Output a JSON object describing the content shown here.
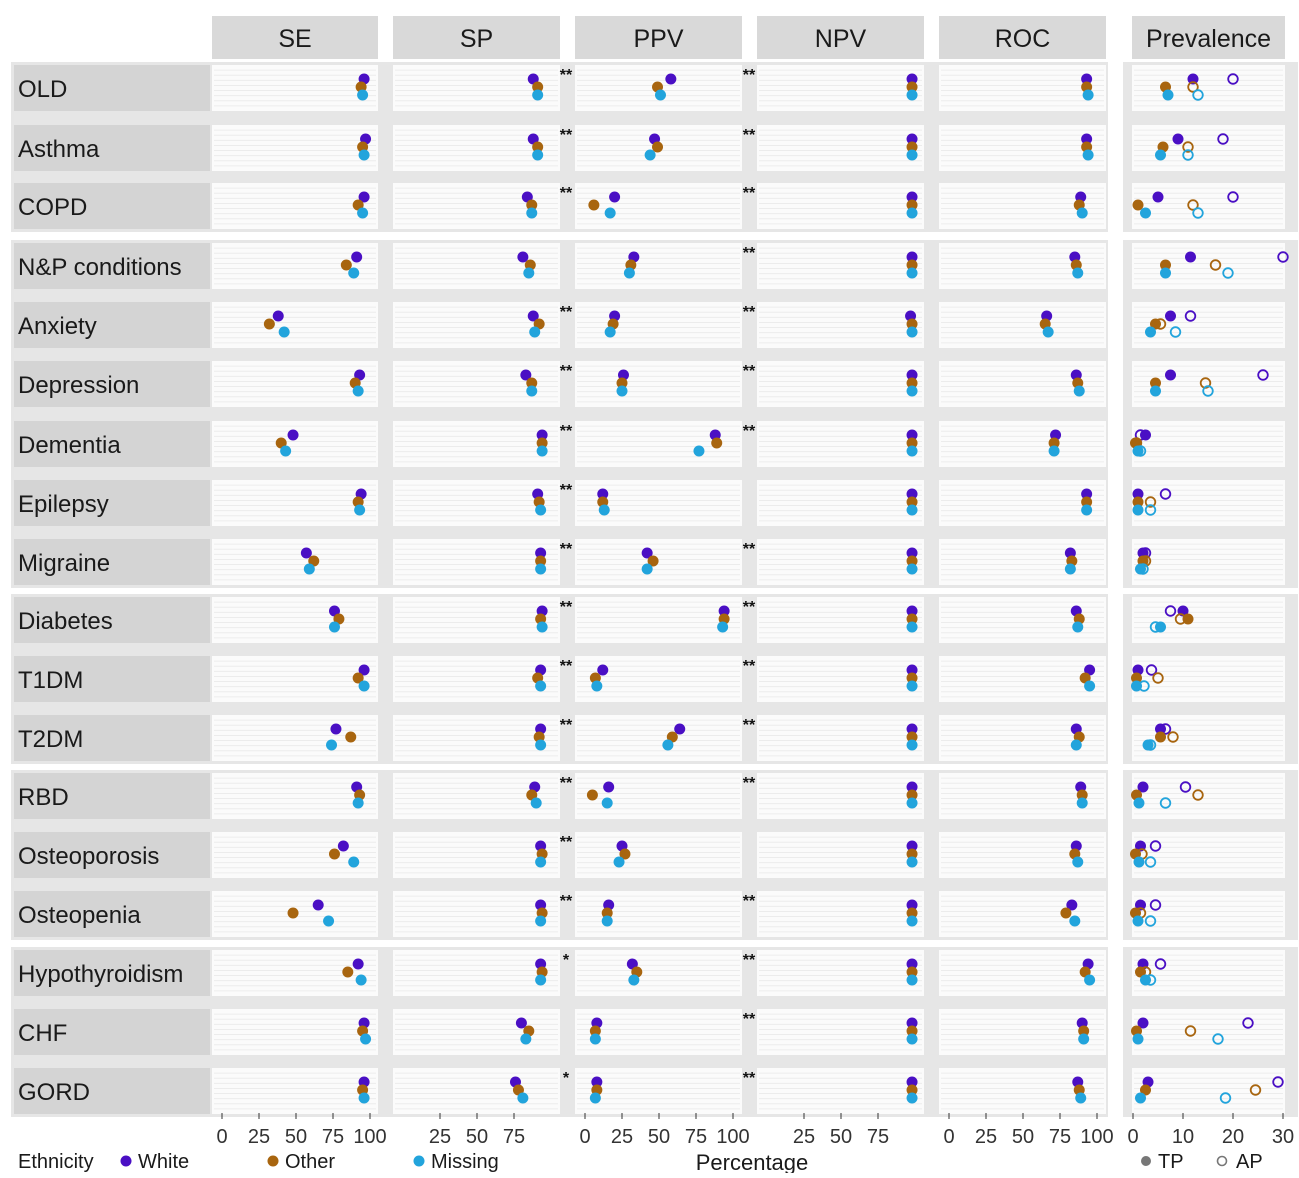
{
  "chart_data": {
    "type": "scatter",
    "xlabel": "Percentage",
    "metric_panels": [
      "SE",
      "SP",
      "PPV",
      "NPV",
      "ROC"
    ],
    "metric_ticks": {
      "SE": [
        "0",
        "25",
        "50",
        "75",
        "100"
      ],
      "SP": [
        "25",
        "50",
        "75"
      ],
      "PPV": [
        "0",
        "25",
        "50",
        "75",
        "100"
      ],
      "NPV": [
        "25",
        "50",
        "75"
      ],
      "ROC": [
        "0",
        "25",
        "50",
        "75",
        "100"
      ]
    },
    "metric_xlim": [
      0,
      100
    ],
    "prevalence_panel": "Prevalence",
    "prevalence_ticks": [
      "0",
      "10",
      "20",
      "30"
    ],
    "prevalence_xlim": [
      0,
      30
    ],
    "legend": {
      "ethnicity_title": "Ethnicity",
      "ethnicity": [
        {
          "name": "White",
          "color": "#4a0fc4"
        },
        {
          "name": "Other",
          "color": "#a8650f"
        },
        {
          "name": "Missing",
          "color": "#22a4dc"
        }
      ],
      "prevalence_markers": [
        {
          "name": "TP",
          "shape": "filled"
        },
        {
          "name": "AP",
          "shape": "hollow"
        }
      ]
    },
    "groups": [
      [
        0,
        1,
        2
      ],
      [
        3,
        4,
        5,
        6,
        7,
        8
      ],
      [
        9,
        10,
        11
      ],
      [
        12,
        13,
        14
      ],
      [
        15,
        16,
        17
      ]
    ],
    "rows": [
      {
        "name": "OLD",
        "sig_ppv": "**",
        "sig_npv": "**",
        "SE": [
          96,
          94,
          95
        ],
        "SP": [
          88,
          91,
          91
        ],
        "PPV": [
          58,
          49,
          51
        ],
        "NPV": [
          98,
          98,
          98
        ],
        "ROC": [
          93,
          93,
          94
        ],
        "TP": [
          12,
          6.5,
          7
        ],
        "AP": [
          20,
          12,
          13
        ]
      },
      {
        "name": "Asthma",
        "sig_ppv": "**",
        "sig_npv": "**",
        "SE": [
          97,
          95,
          96
        ],
        "SP": [
          88,
          91,
          91
        ],
        "PPV": [
          47,
          49,
          44
        ],
        "NPV": [
          98,
          98,
          98
        ],
        "ROC": [
          93,
          93,
          94
        ],
        "TP": [
          9,
          6,
          5.5
        ],
        "AP": [
          18,
          11,
          11
        ]
      },
      {
        "name": "COPD",
        "sig_ppv": "**",
        "sig_npv": "**",
        "SE": [
          96,
          92,
          95
        ],
        "SP": [
          84,
          87,
          87
        ],
        "PPV": [
          20,
          6,
          17
        ],
        "NPV": [
          98,
          98,
          98
        ],
        "ROC": [
          89,
          88,
          90
        ],
        "TP": [
          5,
          1,
          2.5
        ],
        "AP": [
          20,
          12,
          13
        ]
      },
      {
        "name": "N&P conditions",
        "sig_ppv": "",
        "sig_npv": "**",
        "SE": [
          91,
          84,
          89
        ],
        "SP": [
          81,
          86,
          85
        ],
        "PPV": [
          33,
          31,
          30
        ],
        "NPV": [
          98,
          98,
          98
        ],
        "ROC": [
          85,
          86,
          87
        ],
        "TP": [
          11.5,
          6.5,
          6.5
        ],
        "AP": [
          30,
          16.5,
          19
        ]
      },
      {
        "name": "Anxiety",
        "sig_ppv": "**",
        "sig_npv": "**",
        "SE": [
          38,
          32,
          42
        ],
        "SP": [
          88,
          92,
          89
        ],
        "PPV": [
          20,
          19,
          17
        ],
        "NPV": [
          97,
          98,
          98
        ],
        "ROC": [
          66,
          65,
          67
        ],
        "TP": [
          7.5,
          4.5,
          3.5
        ],
        "AP": [
          11.5,
          5.5,
          8.5
        ]
      },
      {
        "name": "Depression",
        "sig_ppv": "**",
        "sig_npv": "**",
        "SE": [
          93,
          90,
          92
        ],
        "SP": [
          83,
          87,
          87
        ],
        "PPV": [
          26,
          25,
          25
        ],
        "NPV": [
          98,
          98,
          98
        ],
        "ROC": [
          86,
          87,
          88
        ],
        "TP": [
          7.5,
          4.5,
          4.5
        ],
        "AP": [
          26,
          14.5,
          15
        ]
      },
      {
        "name": "Dementia",
        "sig_ppv": "**",
        "sig_npv": "**",
        "SE": [
          48,
          40,
          43
        ],
        "SP": [
          94,
          94,
          94
        ],
        "PPV": [
          88,
          89,
          77
        ],
        "NPV": [
          98,
          98,
          98
        ],
        "ROC": [
          72,
          71,
          71
        ],
        "TP": [
          2.5,
          0.5,
          1
        ],
        "AP": [
          1.5,
          0.7,
          1.5
        ]
      },
      {
        "name": "Epilepsy",
        "sig_ppv": "**",
        "sig_npv": "",
        "SE": [
          94,
          92,
          93
        ],
        "SP": [
          91,
          92,
          93
        ],
        "PPV": [
          12,
          12,
          13
        ],
        "NPV": [
          98,
          98,
          98
        ],
        "ROC": [
          93,
          93,
          93
        ],
        "TP": [
          1,
          1,
          1
        ],
        "AP": [
          6.5,
          3.5,
          3.5
        ]
      },
      {
        "name": "Migraine",
        "sig_ppv": "**",
        "sig_npv": "**",
        "SE": [
          57,
          62,
          59
        ],
        "SP": [
          93,
          93,
          93
        ],
        "PPV": [
          42,
          46,
          42
        ],
        "NPV": [
          98,
          98,
          98
        ],
        "ROC": [
          82,
          83,
          82
        ],
        "TP": [
          2,
          2,
          1.5
        ],
        "AP": [
          2.5,
          2.5,
          2
        ]
      },
      {
        "name": "Diabetes",
        "sig_ppv": "**",
        "sig_npv": "**",
        "SE": [
          76,
          79,
          76
        ],
        "SP": [
          94,
          93,
          94
        ],
        "PPV": [
          94,
          94,
          93
        ],
        "NPV": [
          98,
          98,
          98
        ],
        "ROC": [
          86,
          88,
          87
        ],
        "TP": [
          10,
          11,
          5.5
        ],
        "AP": [
          7.5,
          9.5,
          4.5
        ]
      },
      {
        "name": "T1DM",
        "sig_ppv": "**",
        "sig_npv": "**",
        "SE": [
          96,
          92,
          96
        ],
        "SP": [
          93,
          91,
          93
        ],
        "PPV": [
          12,
          7,
          8
        ],
        "NPV": [
          98,
          98,
          98
        ],
        "ROC": [
          95,
          92,
          95
        ],
        "TP": [
          1,
          0.7,
          0.7
        ],
        "AP": [
          3.7,
          5,
          2.2
        ]
      },
      {
        "name": "T2DM",
        "sig_ppv": "**",
        "sig_npv": "**",
        "SE": [
          77,
          87,
          74
        ],
        "SP": [
          93,
          92,
          93
        ],
        "PPV": [
          64,
          59,
          56
        ],
        "NPV": [
          98,
          98,
          98
        ],
        "ROC": [
          86,
          88,
          86
        ],
        "TP": [
          5.5,
          5.5,
          3
        ],
        "AP": [
          6.5,
          8,
          3.5
        ]
      },
      {
        "name": "RBD",
        "sig_ppv": "**",
        "sig_npv": "**",
        "SE": [
          91,
          93,
          92
        ],
        "SP": [
          89,
          87,
          90
        ],
        "PPV": [
          16,
          5,
          15
        ],
        "NPV": [
          98,
          98,
          98
        ],
        "ROC": [
          89,
          90,
          90
        ],
        "TP": [
          2,
          0.7,
          1.2
        ],
        "AP": [
          10.5,
          13,
          6.5
        ]
      },
      {
        "name": "Osteoporosis",
        "sig_ppv": "**",
        "sig_npv": "",
        "SE": [
          82,
          76,
          89
        ],
        "SP": [
          93,
          94,
          93
        ],
        "PPV": [
          25,
          27,
          23
        ],
        "NPV": [
          98,
          98,
          98
        ],
        "ROC": [
          86,
          85,
          87
        ],
        "TP": [
          1.5,
          0.5,
          1.2
        ],
        "AP": [
          4.5,
          1.8,
          3.5
        ]
      },
      {
        "name": "Osteopenia",
        "sig_ppv": "**",
        "sig_npv": "**",
        "SE": [
          65,
          48,
          72
        ],
        "SP": [
          93,
          94,
          93
        ],
        "PPV": [
          16,
          15,
          15
        ],
        "NPV": [
          98,
          98,
          98
        ],
        "ROC": [
          83,
          79,
          85
        ],
        "TP": [
          1.5,
          0.5,
          1
        ],
        "AP": [
          4.5,
          1.5,
          3.5
        ]
      },
      {
        "name": "Hypothyroidism",
        "sig_ppv": "*",
        "sig_npv": "**",
        "SE": [
          92,
          85,
          94
        ],
        "SP": [
          93,
          94,
          93
        ],
        "PPV": [
          32,
          35,
          33
        ],
        "NPV": [
          98,
          98,
          98
        ],
        "ROC": [
          94,
          92,
          95
        ],
        "TP": [
          2,
          1.5,
          2.5
        ],
        "AP": [
          5.5,
          2.5,
          3.5
        ]
      },
      {
        "name": "CHF",
        "sig_ppv": "",
        "sig_npv": "**",
        "SE": [
          96,
          95,
          97
        ],
        "SP": [
          80,
          85,
          83
        ],
        "PPV": [
          8,
          7,
          7
        ],
        "NPV": [
          98,
          98,
          98
        ],
        "ROC": [
          90,
          91,
          91
        ],
        "TP": [
          2,
          0.7,
          1
        ],
        "AP": [
          23,
          11.5,
          17
        ]
      },
      {
        "name": "GORD",
        "sig_ppv": "*",
        "sig_npv": "**",
        "SE": [
          96,
          95,
          96
        ],
        "SP": [
          76,
          78,
          81
        ],
        "PPV": [
          8,
          8,
          7
        ],
        "NPV": [
          98,
          98,
          98
        ],
        "ROC": [
          87,
          88,
          89
        ],
        "TP": [
          3,
          2.5,
          1.5
        ],
        "AP": [
          29,
          24.5,
          18.5
        ]
      }
    ]
  }
}
